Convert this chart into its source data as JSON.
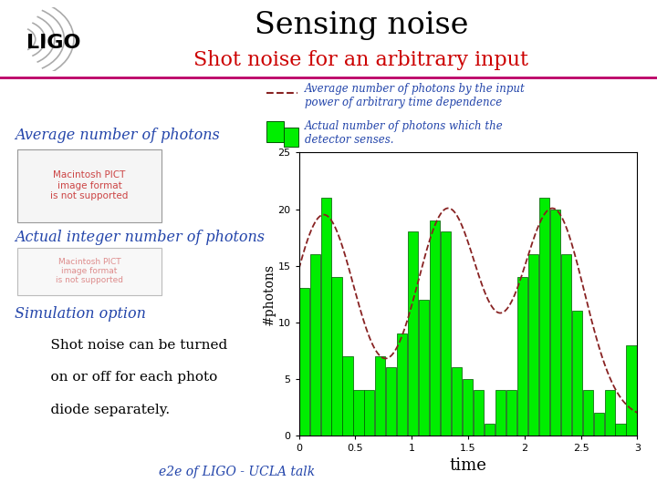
{
  "title": "Sensing noise",
  "subtitle": "Shot noise for an arbitrary input",
  "title_color": "#000000",
  "subtitle_color": "#cc0000",
  "bg_color": "#ffffff",
  "separator_color": "#bb0066",
  "legend_line_text1": "Average number of photons by the input",
  "legend_line_text2": "power of arbitrary time dependence",
  "legend_bar_text1": "Actual number of photons which the",
  "legend_bar_text2": "detector senses.",
  "legend_text_color": "#2244aa",
  "footer": "e2e of LIGO - UCLA talk",
  "footer_color": "#2244aa",
  "bar_color": "#00ee00",
  "bar_edge_color": "#005500",
  "curve_color": "#882222",
  "bar_heights": [
    13,
    16,
    21,
    14,
    7,
    4,
    4,
    7,
    6,
    9,
    18,
    12,
    19,
    18,
    6,
    5,
    4,
    1,
    4,
    4,
    14,
    16,
    21,
    20,
    16,
    11,
    4,
    2,
    4,
    1,
    8
  ],
  "xlabel": "time",
  "ylabel": "#photons",
  "xlim": [
    0,
    3
  ],
  "ylim": [
    0,
    25
  ],
  "xticks": [
    0,
    0.5,
    1.0,
    1.5,
    2.0,
    2.5,
    3.0
  ],
  "yticks": [
    0,
    5,
    10,
    15,
    20,
    25
  ],
  "left_text1": "Average number of photons",
  "left_text2": "Actual integer number of photons",
  "left_text3": "Simulation option",
  "left_text4a": "    Shot noise can be turned",
  "left_text4b": "    on or off for each photo",
  "left_text4c": "    diode separately.",
  "pict_text": "Macintosh PICT\nimage format\nis not supported",
  "text_color_blue": "#2244aa",
  "text_color_black": "#000000",
  "text_color_red_pict": "#cc4444"
}
